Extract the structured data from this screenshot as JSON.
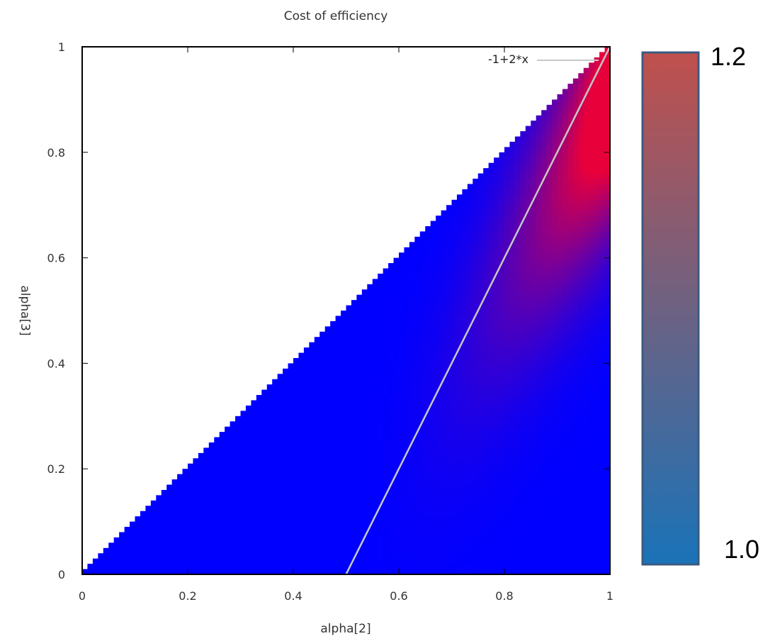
{
  "chart_data": {
    "type": "heatmap",
    "title": "Cost of efficiency",
    "xlabel": "alpha[2]",
    "ylabel": "alpha[3]",
    "xlim": [
      0,
      1
    ],
    "ylim": [
      0,
      1
    ],
    "x_ticks": [
      "0",
      "0.2",
      "0.4",
      "0.6",
      "0.8",
      "1"
    ],
    "y_ticks": [
      "0",
      "0.2",
      "0.4",
      "0.6",
      "0.8",
      "1"
    ],
    "x_tick_values": [
      0,
      0.2,
      0.4,
      0.6,
      0.8,
      1
    ],
    "y_tick_values": [
      0,
      0.2,
      0.4,
      0.6,
      0.8,
      1
    ],
    "grid": false,
    "domain_note": "values defined for alpha[3] <= alpha[2]",
    "line": {
      "label": "-1+2*x",
      "points": [
        [
          0.5,
          0
        ],
        [
          1,
          1
        ]
      ],
      "color": "#c8c8c8"
    },
    "colorbar": {
      "min_label": "1.0",
      "max_label": "1.2",
      "min": 1.0,
      "max": 1.2,
      "colors": [
        "#1a73b8",
        "#c0504d"
      ],
      "border_color": "#3a5b80"
    },
    "colors": {
      "base": "#0000ff",
      "peak": "#e8003a"
    }
  }
}
